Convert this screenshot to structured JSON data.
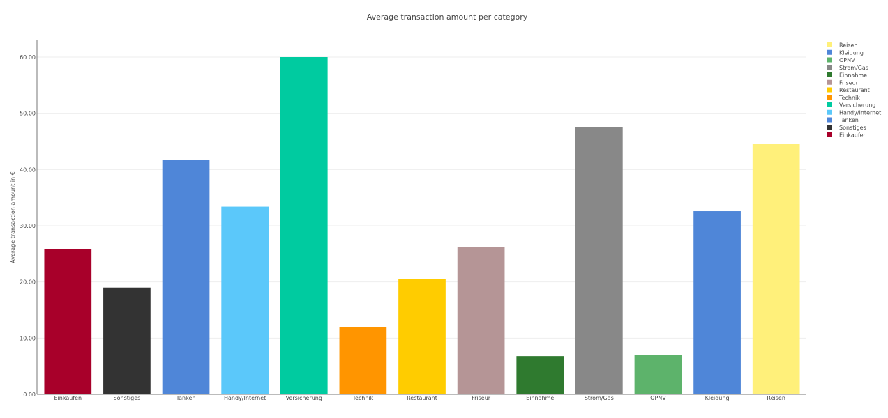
{
  "chart_data": {
    "type": "bar",
    "title": "Average transaction amount per category",
    "xlabel": "",
    "ylabel": "Average transaction amount in €",
    "ylim": [
      0,
      60
    ],
    "yticks": [
      "0.00",
      "10.00",
      "20.00",
      "30.00",
      "40.00",
      "50.00",
      "60.00"
    ],
    "grid": true,
    "legend_position": "top-right",
    "categories": [
      "Einkaufen",
      "Sonstiges",
      "Tanken",
      "Handy/Internet",
      "Versicherung",
      "Technik",
      "Restaurant",
      "Friseur",
      "Einnahme",
      "Strom/Gas",
      "OPNV",
      "Kleidung",
      "Reisen"
    ],
    "values": [
      25.8,
      19.0,
      41.7,
      33.4,
      60.0,
      12.0,
      20.5,
      26.2,
      6.8,
      47.6,
      7.0,
      32.6,
      44.6
    ],
    "colors": [
      "#a8002a",
      "#333333",
      "#4f86d8",
      "#5bc8fa",
      "#00cba0",
      "#ff9500",
      "#ffcc00",
      "#b59596",
      "#2f7a2f",
      "#888888",
      "#5db36b",
      "#4f86d8",
      "#fff07a"
    ],
    "legend": [
      {
        "label": "Reisen",
        "color": "#fff07a"
      },
      {
        "label": "Kleidung",
        "color": "#4f86d8"
      },
      {
        "label": "OPNV",
        "color": "#5db36b"
      },
      {
        "label": "Strom/Gas",
        "color": "#888888"
      },
      {
        "label": "Einnahme",
        "color": "#2f7a2f"
      },
      {
        "label": "Friseur",
        "color": "#b59596"
      },
      {
        "label": "Restaurant",
        "color": "#ffcc00"
      },
      {
        "label": "Technik",
        "color": "#ff9500"
      },
      {
        "label": "Versicherung",
        "color": "#00cba0"
      },
      {
        "label": "Handy/Internet",
        "color": "#5bc8fa"
      },
      {
        "label": "Tanken",
        "color": "#4f86d8"
      },
      {
        "label": "Sonstiges",
        "color": "#333333"
      },
      {
        "label": "Einkaufen",
        "color": "#a8002a"
      }
    ]
  }
}
